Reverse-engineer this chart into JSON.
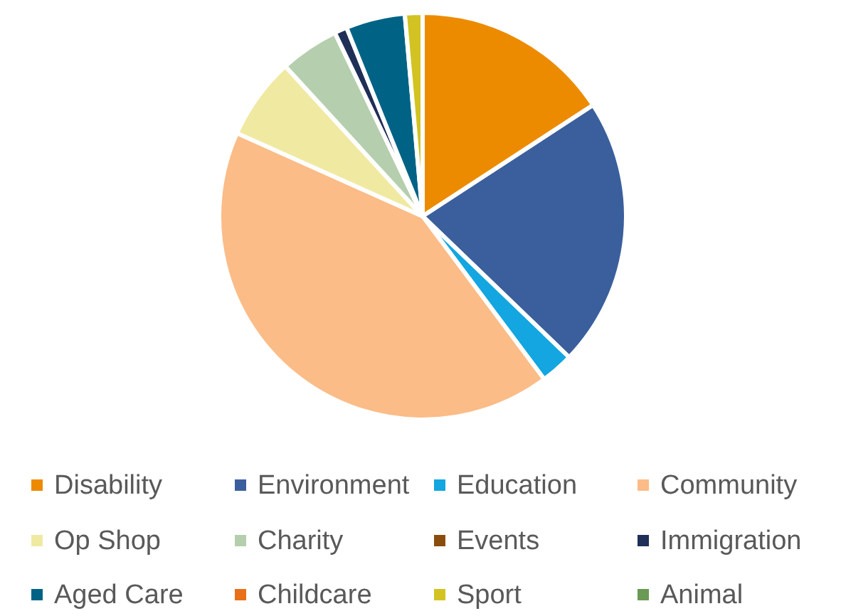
{
  "chart_data": {
    "type": "pie",
    "categories": [
      "Disability",
      "Environment",
      "Education",
      "Community",
      "Op Shop",
      "Charity",
      "Events",
      "Immigration",
      "Aged Care",
      "Childcare",
      "Sport",
      "Animal"
    ],
    "values": [
      15.8,
      21.4,
      2.6,
      41.9,
      6.5,
      4.7,
      0,
      1.0,
      4.7,
      0,
      1.4,
      0
    ],
    "colors": [
      "#ed8b00",
      "#3a5f9c",
      "#13a6e0",
      "#fbbc87",
      "#f0e9a1",
      "#b5cfae",
      "#8b4d0e",
      "#1f2f57",
      "#006386",
      "#e8701a",
      "#d2c322",
      "#6a9a55"
    ],
    "legend": "bottom"
  }
}
